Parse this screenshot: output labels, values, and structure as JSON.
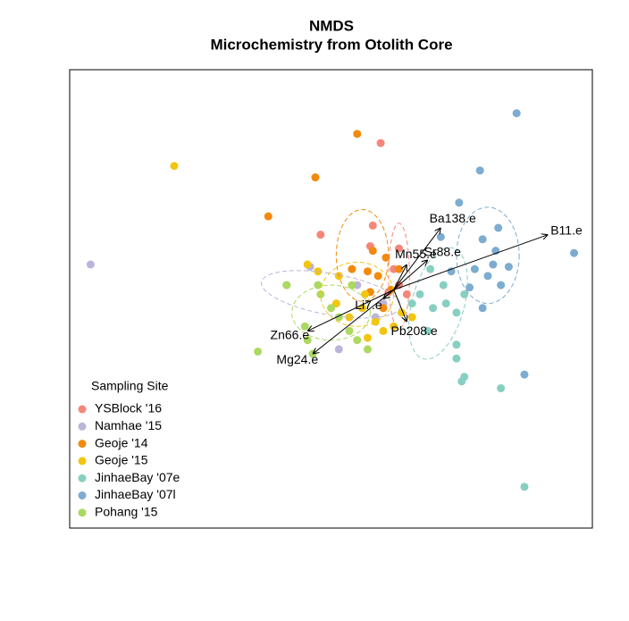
{
  "chart_data": {
    "type": "scatter",
    "title": "NMDS",
    "subtitle": "Microchemistry from Otolith Core",
    "xlim": [
      -1,
      1
    ],
    "ylim": [
      -1,
      1
    ],
    "legend_title": "Sampling Site",
    "legend_position": "bottom-left",
    "series": [
      {
        "name": "YSBlock '16",
        "color": "#f4877a",
        "x": [
          0.19,
          -0.04,
          0.16,
          0.26,
          0.24,
          0.26,
          0.22,
          0.15,
          0.29
        ],
        "y": [
          0.68,
          0.28,
          0.32,
          0.22,
          0.13,
          0.06,
          0.03,
          0.23,
          0.02
        ],
        "ellipse": {
          "center": [
            0.26,
            0.1
          ],
          "radii": [
            0.04,
            0.23
          ],
          "angle": 0
        }
      },
      {
        "name": "Namhae '15",
        "color": "#bcb5d9",
        "x": [
          -0.92,
          0.03,
          -0.08,
          -0.17,
          0.1,
          0.2,
          0.17
        ],
        "y": [
          0.15,
          -0.22,
          0.14,
          0.06,
          0.06,
          -0.02,
          -0.08
        ],
        "ellipse": {
          "center": [
            0.0,
            0.02
          ],
          "radii": [
            0.27,
            0.09
          ],
          "angle": -10
        }
      },
      {
        "name": "Geoje '14",
        "color": "#f28a0e",
        "x": [
          0.1,
          -0.06,
          -0.24,
          0.16,
          0.21,
          0.26,
          0.18,
          0.14,
          0.23,
          0.15,
          0.2,
          0.08
        ],
        "y": [
          0.72,
          0.53,
          0.36,
          0.21,
          0.18,
          0.13,
          0.1,
          0.12,
          0.04,
          0.03,
          -0.04,
          0.13
        ],
        "ellipse": {
          "center": [
            0.12,
            0.19
          ],
          "radii": [
            0.1,
            0.2
          ],
          "angle": 0
        }
      },
      {
        "name": "Geoje '15",
        "color": "#f2c60f",
        "x": [
          -0.6,
          -0.09,
          -0.05,
          0.03,
          0.13,
          0.12,
          0.07,
          0.17,
          0.24,
          0.27,
          0.2,
          0.14,
          0.02,
          0.31
        ],
        "y": [
          0.58,
          0.15,
          0.12,
          0.1,
          0.02,
          -0.04,
          -0.08,
          -0.1,
          -0.12,
          -0.06,
          -0.14,
          -0.17,
          -0.02,
          -0.08
        ],
        "ellipse": {
          "center": [
            0.1,
            0.02
          ],
          "radii": [
            0.14,
            0.14
          ],
          "angle": 0
        }
      },
      {
        "name": "JinhaeBay '07e",
        "color": "#87cfc1",
        "x": [
          0.38,
          0.43,
          0.34,
          0.44,
          0.48,
          0.39,
          0.31,
          0.51,
          0.48,
          0.37,
          0.48,
          0.51,
          0.5,
          0.65,
          0.74
        ],
        "y": [
          0.13,
          0.06,
          0.02,
          -0.02,
          -0.06,
          -0.04,
          -0.02,
          0.02,
          -0.2,
          -0.14,
          -0.26,
          -0.34,
          -0.36,
          -0.39,
          -0.82
        ],
        "ellipse": {
          "center": [
            0.41,
            -0.02
          ],
          "radii": [
            0.1,
            0.25
          ],
          "angle": -15
        }
      },
      {
        "name": "JinhaeBay '07l",
        "color": "#7cacd0",
        "x": [
          0.71,
          0.57,
          0.49,
          0.64,
          0.58,
          0.63,
          0.68,
          0.62,
          0.6,
          0.65,
          0.58,
          0.53,
          0.55,
          0.46,
          0.42,
          0.93,
          0.74
        ],
        "y": [
          0.81,
          0.56,
          0.42,
          0.31,
          0.26,
          0.21,
          0.14,
          0.15,
          0.1,
          0.06,
          -0.04,
          0.05,
          0.13,
          0.12,
          0.27,
          0.2,
          -0.33
        ],
        "ellipse": {
          "center": [
            0.6,
            0.19
          ],
          "radii": [
            0.12,
            0.21
          ],
          "angle": 0
        }
      },
      {
        "name": "Pohang '15",
        "color": "#acd95f",
        "x": [
          -0.28,
          -0.17,
          -0.1,
          -0.09,
          -0.04,
          0.0,
          0.03,
          0.07,
          0.1,
          0.14,
          0.08,
          -0.05,
          -0.07
        ],
        "y": [
          -0.23,
          0.06,
          -0.12,
          -0.18,
          0.02,
          -0.04,
          -0.08,
          -0.14,
          -0.18,
          -0.22,
          0.06,
          0.06,
          -0.24
        ],
        "ellipse": {
          "center": [
            0.0,
            -0.06
          ],
          "radii": [
            0.15,
            0.12
          ],
          "angle": 0
        }
      }
    ],
    "arrow_origin": [
      0.24,
      0.04
    ],
    "vectors": [
      {
        "label": "B11.e",
        "x": 0.83,
        "y": 0.28
      },
      {
        "label": "Ba138.e",
        "x": 0.42,
        "y": 0.31
      },
      {
        "label": "Sr88.e",
        "x": 0.37,
        "y": 0.17
      },
      {
        "label": "Mn55.e",
        "x": 0.29,
        "y": 0.15
      },
      {
        "label": "Li7.e",
        "x": 0.2,
        "y": 0.0
      },
      {
        "label": "Pb208.e",
        "x": 0.29,
        "y": -0.1
      },
      {
        "label": "Zn66.e",
        "x": -0.09,
        "y": -0.14
      },
      {
        "label": "Mg24.e",
        "x": -0.07,
        "y": -0.24
      }
    ]
  }
}
